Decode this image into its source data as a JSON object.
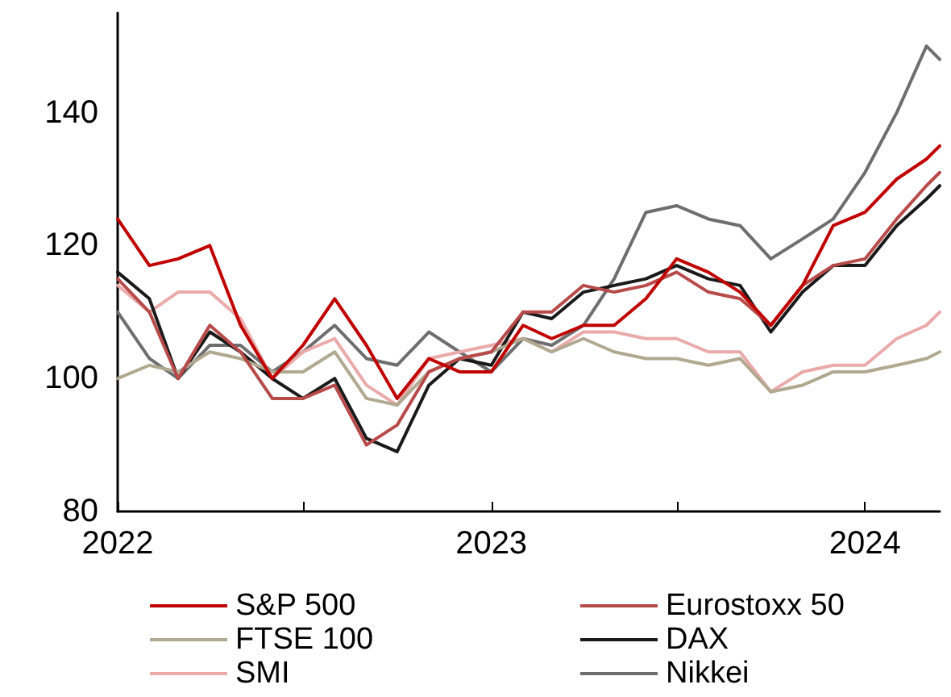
{
  "chart_data": {
    "type": "line",
    "x": [
      "2022-01-01",
      "2022-02-01",
      "2022-03-01",
      "2022-04-01",
      "2022-05-01",
      "2022-06-01",
      "2022-07-01",
      "2022-08-01",
      "2022-09-01",
      "2022-10-01",
      "2022-11-01",
      "2022-12-01",
      "2023-01-01",
      "2023-02-01",
      "2023-03-01",
      "2023-04-01",
      "2023-05-01",
      "2023-06-01",
      "2023-07-01",
      "2023-08-01",
      "2023-09-01",
      "2023-10-01",
      "2023-11-01",
      "2023-12-01",
      "2024-01-01",
      "2024-02-01",
      "2024-03-01",
      "2024-03-14"
    ],
    "series": [
      {
        "name": "S&P 500",
        "color": "#c00000",
        "values": [
          124,
          117,
          118,
          120,
          108,
          100,
          105,
          112,
          105,
          97,
          103,
          101,
          101,
          108,
          106,
          108,
          108,
          112,
          118,
          116,
          113,
          108,
          114,
          123,
          125,
          130,
          133,
          135
        ]
      },
      {
        "name": "Eurostoxx 50",
        "color": "#b84a4a",
        "values": [
          115,
          110,
          100,
          108,
          104,
          97,
          97,
          99,
          90,
          93,
          101,
          103,
          104,
          110,
          110,
          114,
          113,
          114,
          116,
          113,
          112,
          108,
          114,
          117,
          118,
          124,
          129,
          131
        ]
      },
      {
        "name": "FTSE 100",
        "color": "#b0a890",
        "values": [
          100,
          102,
          101,
          104,
          103,
          101,
          101,
          104,
          97,
          96,
          101,
          103,
          104,
          106,
          104,
          106,
          104,
          103,
          103,
          102,
          103,
          98,
          99,
          101,
          101,
          102,
          103,
          104
        ]
      },
      {
        "name": "DAX",
        "color": "#1a1a1a",
        "values": [
          116,
          112,
          100,
          107,
          104,
          100,
          97,
          100,
          91,
          89,
          99,
          103,
          102,
          110,
          109,
          113,
          114,
          115,
          117,
          115,
          114,
          107,
          113,
          117,
          117,
          123,
          127,
          129
        ]
      },
      {
        "name": "SMI",
        "color": "#ebaaaa",
        "values": [
          114,
          110,
          113,
          113,
          109,
          100,
          104,
          106,
          99,
          96,
          103,
          104,
          105,
          106,
          104,
          107,
          107,
          106,
          106,
          104,
          104,
          98,
          101,
          102,
          102,
          106,
          108,
          110
        ]
      },
      {
        "name": "Nikkei",
        "color": "#6e6e6e",
        "values": [
          110,
          103,
          100,
          105,
          105,
          101,
          104,
          108,
          103,
          102,
          107,
          104,
          101,
          106,
          105,
          108,
          115,
          125,
          126,
          124,
          123,
          118,
          121,
          124,
          131,
          140,
          150,
          148
        ]
      }
    ],
    "xlim": [
      "2022-01-01",
      "2024-03-14"
    ],
    "xticks": [
      "2022",
      {
        "value": "2022-07",
        "label": null
      },
      "2023",
      {
        "value": "2023-07",
        "label": null
      },
      "2024"
    ],
    "ylim": [
      80,
      155
    ],
    "yticks": [
      80,
      100,
      120,
      140
    ],
    "grid": false,
    "legend": "bottom",
    "marker": "none",
    "line_style": "solid"
  }
}
